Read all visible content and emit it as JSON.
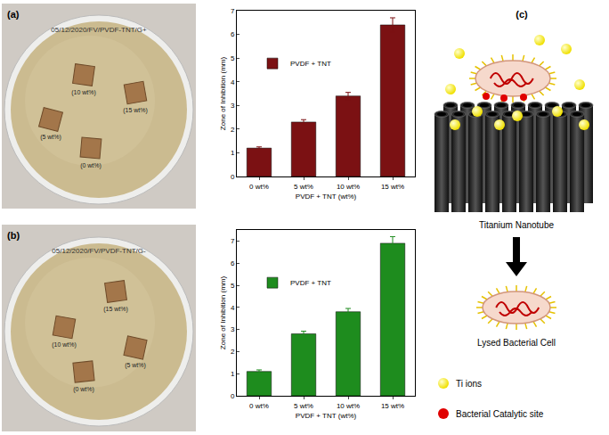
{
  "chart_data": [
    {
      "type": "bar",
      "x_label": "PVDF + TNT (wt%)",
      "y_label": "Zone of Inhibition (mm)",
      "categories": [
        "0 wt%",
        "5 wt%",
        "10 wt%",
        "15 wt%"
      ],
      "series": [
        {
          "name": "PVDF + TNT",
          "color": "#7b1113",
          "values": [
            1.2,
            2.3,
            3.4,
            6.4
          ],
          "errors": [
            0.05,
            0.1,
            0.15,
            0.3
          ]
        }
      ],
      "ylim": [
        0,
        7
      ],
      "yticks": [
        0,
        1,
        2,
        3,
        4,
        5,
        6,
        7
      ],
      "legend": "upper left"
    },
    {
      "type": "bar",
      "x_label": "PVDF + TNT (wt%)",
      "y_label": "Zone of Inhibition (mm)",
      "categories": [
        "0 wt%",
        "5 wt%",
        "10 wt%",
        "15 wt%"
      ],
      "series": [
        {
          "name": "PVDF + TNT",
          "color": "#1e8c1e",
          "values": [
            1.1,
            2.8,
            3.8,
            6.9
          ],
          "errors": [
            0.07,
            0.12,
            0.15,
            0.3
          ]
        }
      ],
      "ylim": [
        0,
        7.5
      ],
      "yticks": [
        0,
        1,
        2,
        3,
        4,
        5,
        6,
        7
      ],
      "legend": "upper left"
    }
  ],
  "photos": [
    {
      "label": "(a)",
      "dish_text": "05/12/2020/FV/PVDF-TNT/G+",
      "samples": [
        "(10 wt%)",
        "(15 wt%)",
        "(5 wt%)",
        "(0 wt%)"
      ]
    },
    {
      "label": "(b)",
      "dish_text": "05/12/2020/FV/PVDF-TNT/G-",
      "samples": [
        "(15 wt%)",
        "(10 wt%)",
        "(5 wt%)",
        "(0 wt%)"
      ]
    }
  ],
  "diagram": {
    "label": "(c)",
    "top_label": "Titanium Nanotube",
    "bottom_label": "Lysed Bacterial Cell",
    "legend": [
      {
        "text": "Ti ions",
        "color": "#f0e000"
      },
      {
        "text": "Bacterial Catalytic site",
        "color": "#e00000"
      }
    ]
  }
}
